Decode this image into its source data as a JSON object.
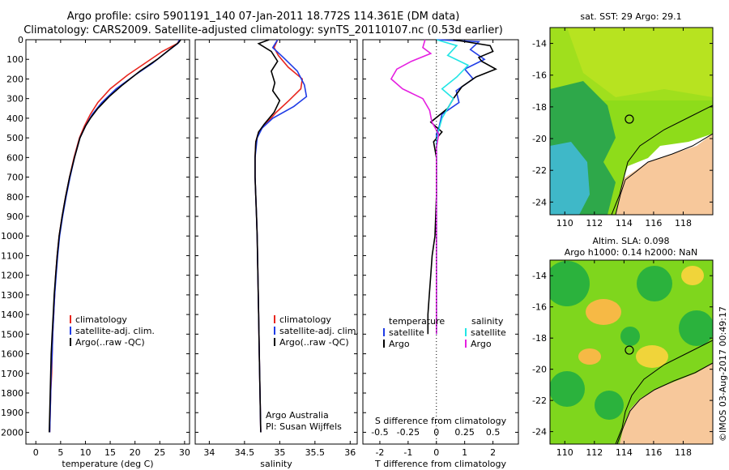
{
  "header": {
    "line1": "Argo profile: csiro 5901191_140 07-Jan-2011 18.772S 114.361E (DM data)",
    "line2": "Climatology: CARS2009. Satellite-adjusted climatology: synTS_20110107.nc (0.53d earlier)"
  },
  "stamp": "©IMOS 03-Aug-2017 00:49:17",
  "colors": {
    "clim": "#e8261e",
    "sat": "#1f3ce6",
    "argo": "#000000",
    "cyan": "#22e5e5",
    "magenta": "#e51fe0"
  },
  "chart_data": [
    {
      "type": "line",
      "id": "temperature",
      "xlabel": "temperature (deg C)",
      "ylabel": "",
      "xlim": [
        -2,
        31
      ],
      "ylim": [
        2060,
        0
      ],
      "y_reversed": true,
      "xticks": [
        0,
        5,
        10,
        15,
        20,
        25,
        30
      ],
      "yticks": [
        0,
        100,
        200,
        300,
        400,
        500,
        600,
        700,
        800,
        900,
        1000,
        1100,
        1200,
        1300,
        1400,
        1500,
        1600,
        1700,
        1800,
        1900,
        2000
      ],
      "legend": {
        "position": "lower-left",
        "entries": [
          "climatology",
          "satellite-adj. clim.",
          "Argo(..raw -QC)"
        ]
      },
      "series": [
        {
          "name": "climatology",
          "color": "clim",
          "points": [
            [
              29.0,
              0
            ],
            [
              28.5,
              20
            ],
            [
              25.5,
              60
            ],
            [
              22.0,
              120
            ],
            [
              18.5,
              180
            ],
            [
              15.0,
              250
            ],
            [
              12.5,
              320
            ],
            [
              11.0,
              380
            ],
            [
              9.8,
              440
            ],
            [
              8.8,
              500
            ],
            [
              7.7,
              600
            ],
            [
              6.8,
              700
            ],
            [
              6.0,
              800
            ],
            [
              5.3,
              900
            ],
            [
              4.7,
              1000
            ],
            [
              4.3,
              1100
            ],
            [
              4.0,
              1200
            ],
            [
              3.8,
              1300
            ],
            [
              3.6,
              1400
            ],
            [
              3.4,
              1500
            ],
            [
              3.3,
              1600
            ],
            [
              3.2,
              1700
            ],
            [
              3.0,
              1800
            ],
            [
              2.9,
              1900
            ],
            [
              2.8,
              2000
            ]
          ]
        },
        {
          "name": "satellite-adj. clim.",
          "color": "sat",
          "points": [
            [
              29.0,
              0
            ],
            [
              28.6,
              20
            ],
            [
              26.5,
              60
            ],
            [
              23.5,
              120
            ],
            [
              20.0,
              180
            ],
            [
              16.2,
              250
            ],
            [
              13.3,
              320
            ],
            [
              11.4,
              380
            ],
            [
              10.0,
              440
            ],
            [
              8.9,
              500
            ],
            [
              7.8,
              600
            ],
            [
              6.9,
              700
            ],
            [
              6.1,
              800
            ],
            [
              5.4,
              900
            ],
            [
              4.8,
              1000
            ],
            [
              4.4,
              1100
            ],
            [
              4.1,
              1200
            ],
            [
              3.8,
              1300
            ],
            [
              3.6,
              1400
            ],
            [
              3.4,
              1500
            ],
            [
              3.3,
              1600
            ],
            [
              3.1,
              1700
            ],
            [
              3.0,
              1800
            ],
            [
              2.9,
              1900
            ],
            [
              2.8,
              2000
            ]
          ]
        },
        {
          "name": "Argo(..raw -QC)",
          "color": "argo",
          "points": [
            [
              29.2,
              0
            ],
            [
              28.8,
              15
            ],
            [
              27.0,
              50
            ],
            [
              24.5,
              100
            ],
            [
              21.0,
              160
            ],
            [
              17.5,
              230
            ],
            [
              14.8,
              290
            ],
            [
              12.5,
              350
            ],
            [
              11.0,
              400
            ],
            [
              10.0,
              440
            ],
            [
              8.9,
              500
            ],
            [
              7.8,
              600
            ],
            [
              6.8,
              700
            ],
            [
              6.0,
              800
            ],
            [
              5.3,
              900
            ],
            [
              4.7,
              1000
            ],
            [
              4.3,
              1100
            ],
            [
              4.0,
              1200
            ],
            [
              3.7,
              1300
            ],
            [
              3.5,
              1400
            ],
            [
              3.3,
              1500
            ],
            [
              3.1,
              1600
            ],
            [
              3.0,
              1700
            ],
            [
              2.9,
              1800
            ],
            [
              2.8,
              1900
            ],
            [
              2.7,
              2000
            ]
          ]
        }
      ]
    },
    {
      "type": "line",
      "id": "salinity",
      "xlabel": "salinity",
      "xlim": [
        33.8,
        36.1
      ],
      "ylim": [
        2060,
        0
      ],
      "y_reversed": true,
      "xticks": [
        34,
        34.5,
        35,
        35.5,
        36
      ],
      "legend": {
        "position": "lower-right",
        "entries": [
          "climatology",
          "satellite-adj. clim.",
          "Argo(..raw -QC)"
        ]
      },
      "annotation": [
        "Argo Australia",
        "PI: Susan Wijffels"
      ],
      "series": [
        {
          "name": "climatology",
          "color": "clim",
          "points": [
            [
              34.97,
              0
            ],
            [
              34.92,
              40
            ],
            [
              34.98,
              80
            ],
            [
              35.12,
              140
            ],
            [
              35.32,
              200
            ],
            [
              35.3,
              250
            ],
            [
              35.13,
              310
            ],
            [
              34.95,
              370
            ],
            [
              34.8,
              430
            ],
            [
              34.7,
              470
            ],
            [
              34.66,
              520
            ],
            [
              34.65,
              600
            ],
            [
              34.65,
              700
            ],
            [
              34.66,
              800
            ],
            [
              34.67,
              900
            ],
            [
              34.68,
              1000
            ],
            [
              34.69,
              1200
            ],
            [
              34.7,
              1400
            ],
            [
              34.71,
              1600
            ],
            [
              34.72,
              1800
            ],
            [
              34.73,
              2000
            ]
          ]
        },
        {
          "name": "satellite-adj. clim.",
          "color": "sat",
          "points": [
            [
              34.97,
              0
            ],
            [
              34.9,
              40
            ],
            [
              35.05,
              90
            ],
            [
              35.25,
              160
            ],
            [
              35.35,
              230
            ],
            [
              35.38,
              290
            ],
            [
              35.2,
              340
            ],
            [
              34.9,
              400
            ],
            [
              34.75,
              450
            ],
            [
              34.68,
              500
            ],
            [
              34.65,
              600
            ],
            [
              34.65,
              700
            ],
            [
              34.66,
              800
            ],
            [
              34.67,
              900
            ],
            [
              34.68,
              1000
            ],
            [
              34.69,
              1200
            ],
            [
              34.7,
              1400
            ],
            [
              34.71,
              1600
            ],
            [
              34.72,
              1800
            ],
            [
              34.73,
              2000
            ]
          ]
        },
        {
          "name": "Argo(..raw -QC)",
          "color": "argo",
          "points": [
            [
              34.85,
              0
            ],
            [
              34.7,
              20
            ],
            [
              34.88,
              60
            ],
            [
              34.97,
              110
            ],
            [
              34.88,
              160
            ],
            [
              34.93,
              220
            ],
            [
              34.9,
              260
            ],
            [
              35.0,
              310
            ],
            [
              34.92,
              370
            ],
            [
              34.78,
              430
            ],
            [
              34.7,
              470
            ],
            [
              34.66,
              520
            ],
            [
              34.65,
              600
            ],
            [
              34.65,
              700
            ],
            [
              34.66,
              800
            ],
            [
              34.67,
              900
            ],
            [
              34.68,
              1000
            ],
            [
              34.69,
              1200
            ],
            [
              34.7,
              1400
            ],
            [
              34.71,
              1600
            ],
            [
              34.72,
              1800
            ],
            [
              34.73,
              2000
            ]
          ]
        }
      ]
    },
    {
      "type": "line",
      "id": "difference",
      "xlabel": "T difference from climatology",
      "x2label": "S difference from climatology",
      "xlim": [
        -2.6,
        2.9
      ],
      "ylim": [
        2060,
        0
      ],
      "y_reversed": true,
      "xticks": [
        -2,
        -1,
        0,
        1,
        2
      ],
      "x2lim": [
        -0.65,
        0.725
      ],
      "x2ticks": [
        -0.5,
        -0.25,
        0,
        0.25,
        0.5
      ],
      "legend": {
        "position": "lower-center",
        "headings": [
          "temperature",
          "salinity"
        ],
        "entries_left": [
          "satellite",
          "Argo"
        ],
        "entries_right": [
          "satellite",
          "Argo"
        ]
      },
      "series": [
        {
          "name": "satellite",
          "group": "temperature",
          "color": "sat",
          "points": [
            [
              0.0,
              0
            ],
            [
              1.5,
              10
            ],
            [
              1.2,
              50
            ],
            [
              1.7,
              100
            ],
            [
              1.0,
              150
            ],
            [
              1.3,
              200
            ],
            [
              0.7,
              260
            ],
            [
              0.8,
              320
            ],
            [
              0.2,
              380
            ],
            [
              0.1,
              440
            ],
            [
              0.0,
              480
            ],
            [
              0.0,
              560
            ],
            [
              0.0,
              700
            ],
            [
              0.0,
              900
            ],
            [
              0.0,
              1100
            ],
            [
              0.0,
              1300
            ],
            [
              0.0,
              1500
            ]
          ]
        },
        {
          "name": "Argo",
          "group": "temperature",
          "color": "argo",
          "points": [
            [
              0.6,
              0
            ],
            [
              1.9,
              30
            ],
            [
              2.0,
              60
            ],
            [
              1.5,
              90
            ],
            [
              1.6,
              110
            ],
            [
              2.1,
              150
            ],
            [
              1.4,
              190
            ],
            [
              0.9,
              240
            ],
            [
              0.6,
              300
            ],
            [
              0.4,
              350
            ],
            [
              -0.2,
              420
            ],
            [
              0.2,
              470
            ],
            [
              -0.1,
              520
            ],
            [
              0.0,
              600
            ],
            [
              0.0,
              800
            ],
            [
              -0.05,
              1000
            ],
            [
              -0.15,
              1100
            ],
            [
              -0.2,
              1200
            ],
            [
              -0.25,
              1300
            ],
            [
              -0.3,
              1400
            ],
            [
              -0.3,
              1500
            ]
          ]
        },
        {
          "name": "satellite",
          "group": "salinity",
          "color": "cyan",
          "points": [
            [
              0.0,
              0
            ],
            [
              0.18,
              30
            ],
            [
              0.1,
              80
            ],
            [
              0.28,
              130
            ],
            [
              0.18,
              190
            ],
            [
              0.05,
              250
            ],
            [
              0.15,
              300
            ],
            [
              0.1,
              350
            ],
            [
              0.05,
              400
            ],
            [
              0.02,
              460
            ],
            [
              0.0,
              520
            ],
            [
              0.0,
              700
            ],
            [
              0.0,
              900
            ],
            [
              0.0,
              1100
            ],
            [
              0.0,
              1300
            ],
            [
              0.0,
              1500
            ]
          ]
        },
        {
          "name": "Argo",
          "group": "salinity",
          "color": "magenta",
          "points": [
            [
              -0.1,
              0
            ],
            [
              -0.12,
              40
            ],
            [
              -0.05,
              70
            ],
            [
              -0.22,
              110
            ],
            [
              -0.35,
              150
            ],
            [
              -0.4,
              200
            ],
            [
              -0.3,
              250
            ],
            [
              -0.12,
              300
            ],
            [
              -0.06,
              360
            ],
            [
              -0.04,
              420
            ],
            [
              0.02,
              480
            ],
            [
              0.0,
              550
            ],
            [
              0.0,
              700
            ],
            [
              0.0,
              900
            ],
            [
              0.0,
              1100
            ],
            [
              0.0,
              1300
            ],
            [
              0.0,
              1500
            ]
          ]
        }
      ]
    },
    {
      "type": "heatmap",
      "id": "sst-map",
      "title": "sat. SST: 29 Argo: 29.1",
      "xlim": [
        109,
        120
      ],
      "ylim": [
        -24.8,
        -13
      ],
      "xticks": [
        110,
        112,
        114,
        116,
        118
      ],
      "yticks": [
        -14,
        -16,
        -18,
        -20,
        -22,
        -24
      ],
      "marker": {
        "lon": 114.361,
        "lat": -18.772
      }
    },
    {
      "type": "heatmap",
      "id": "sla-map",
      "title": "Altim. SLA: 0.098",
      "subtitle": "Argo h1000: 0.14 h2000: NaN",
      "xlim": [
        109,
        120
      ],
      "ylim": [
        -24.8,
        -13
      ],
      "xticks": [
        110,
        112,
        114,
        116,
        118
      ],
      "yticks": [
        -14,
        -16,
        -18,
        -20,
        -22,
        -24
      ],
      "marker": {
        "lon": 114.361,
        "lat": -18.772
      }
    }
  ]
}
